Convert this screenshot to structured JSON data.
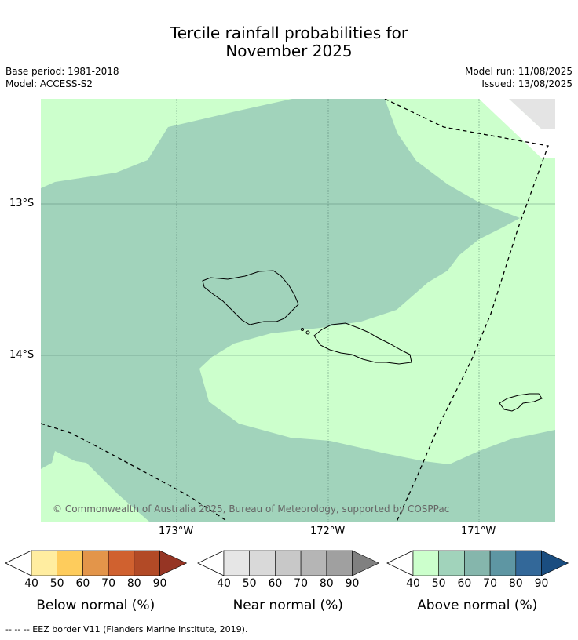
{
  "title_line1": "Tercile rainfall probabilities for",
  "title_line2": "November 2025",
  "base_period": "Base period: 1981-2018",
  "model": "Model: ACCESS-S2",
  "model_run": "Model run: 11/08/2025",
  "issued": "Issued: 13/08/2025",
  "lat_labels": [
    "13°S",
    "14°S"
  ],
  "lon_labels": [
    "173°W",
    "172°W",
    "171°W"
  ],
  "copyright": "© Commonwealth of Australia 2025, Bureau of Meteorology, supported by COSPPac",
  "colorbars": [
    {
      "label": "Below normal (%)",
      "ticks": [
        "40",
        "50",
        "60",
        "70",
        "80",
        "90"
      ],
      "colors": [
        "#ffeda0",
        "#fecc5c",
        "#e3954a",
        "#d0612f",
        "#b24a26",
        "#963524"
      ]
    },
    {
      "label": "Near normal (%)",
      "ticks": [
        "40",
        "50",
        "60",
        "70",
        "80",
        "90"
      ],
      "colors": [
        "#e6e6e6",
        "#d9d9d9",
        "#c8c8c8",
        "#b5b5b5",
        "#a0a0a0",
        "#808080"
      ]
    },
    {
      "label": "Above normal (%)",
      "ticks": [
        "40",
        "50",
        "60",
        "70",
        "80",
        "90"
      ],
      "colors": [
        "#ccffcc",
        "#a1d3bb",
        "#85b6ac",
        "#5e96a3",
        "#336899",
        "#1a4d80"
      ]
    }
  ],
  "footnote": "-- -- -- EEZ border V11 (Flanders Marine Institute, 2019)."
}
